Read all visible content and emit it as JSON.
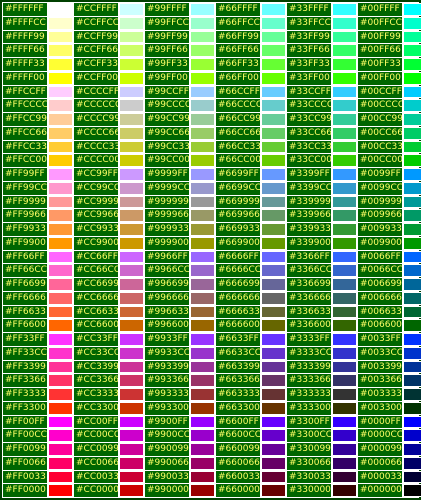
{
  "colors": [
    [
      "#FFFFFF",
      "#CCFFFF",
      "#99FFFF",
      "#66FFFF",
      "#33FFFF",
      "#00FFFF"
    ],
    [
      "#FFFFCC",
      "#CCFFCC",
      "#99FFCC",
      "#66FFCC",
      "#33FFCC",
      "#00FFCC"
    ],
    [
      "#FFFF99",
      "#CCFF99",
      "#99FF99",
      "#66FF99",
      "#33FF99",
      "#00FF99"
    ],
    [
      "#FFFF66",
      "#CCFF66",
      "#99FF66",
      "#66FF66",
      "#33FF66",
      "#00FF66"
    ],
    [
      "#FFFF33",
      "#CCFF33",
      "#99FF33",
      "#66FF33",
      "#33FF33",
      "#00FF33"
    ],
    [
      "#FFFF00",
      "#CCFF00",
      "#99FF00",
      "#66FF00",
      "#33FF00",
      "#00FF00"
    ],
    [
      "#FFCCFF",
      "#CCCCFF",
      "#99CCFF",
      "#66CCFF",
      "#33CCFF",
      "#00CCFF"
    ],
    [
      "#FFCCCC",
      "#CCCCCC",
      "#99CCCC",
      "#66CCCC",
      "#33CCCC",
      "#00CCCC"
    ],
    [
      "#FFCC99",
      "#CCCC99",
      "#99CC99",
      "#66CC99",
      "#33CC99",
      "#00CC99"
    ],
    [
      "#FFCC66",
      "#CCCC66",
      "#99CC66",
      "#66CC66",
      "#33CC66",
      "#00CC66"
    ],
    [
      "#FFCC33",
      "#CCCC33",
      "#99CC33",
      "#66CC33",
      "#33CC33",
      "#00CC33"
    ],
    [
      "#FFCC00",
      "#CCCC00",
      "#99CC00",
      "#66CC00",
      "#33CC00",
      "#00CC00"
    ],
    [
      "#FF99FF",
      "#CC99FF",
      "#9999FF",
      "#6699FF",
      "#3399FF",
      "#0099FF"
    ],
    [
      "#FF99CC",
      "#CC99CC",
      "#9999CC",
      "#6699CC",
      "#3399CC",
      "#0099CC"
    ],
    [
      "#FF9999",
      "#CC9999",
      "#999999",
      "#669999",
      "#339999",
      "#009999"
    ],
    [
      "#FF9966",
      "#CC9966",
      "#999966",
      "#669966",
      "#339966",
      "#009966"
    ],
    [
      "#FF9933",
      "#CC9933",
      "#999933",
      "#669933",
      "#339933",
      "#009933"
    ],
    [
      "#FF9900",
      "#CC9900",
      "#999900",
      "#669900",
      "#339900",
      "#009900"
    ],
    [
      "#FF66FF",
      "#CC66FF",
      "#9966FF",
      "#6666FF",
      "#3366FF",
      "#0066FF"
    ],
    [
      "#FF66CC",
      "#CC66CC",
      "#9966CC",
      "#6666CC",
      "#3366CC",
      "#0066CC"
    ],
    [
      "#FF6699",
      "#CC6699",
      "#996699",
      "#666699",
      "#336699",
      "#006699"
    ],
    [
      "#FF6666",
      "#CC6666",
      "#996666",
      "#666666",
      "#336666",
      "#006666"
    ],
    [
      "#FF6633",
      "#CC6633",
      "#996633",
      "#666633",
      "#336633",
      "#006633"
    ],
    [
      "#FF6600",
      "#CC6600",
      "#996600",
      "#666600",
      "#336600",
      "#006600"
    ],
    [
      "#FF33FF",
      "#CC33FF",
      "#9933FF",
      "#6633FF",
      "#3333FF",
      "#0033FF"
    ],
    [
      "#FF33CC",
      "#CC33CC",
      "#9933CC",
      "#6633CC",
      "#3333CC",
      "#0033CC"
    ],
    [
      "#FF3399",
      "#CC3399",
      "#993399",
      "#663399",
      "#333399",
      "#003399"
    ],
    [
      "#FF3366",
      "#CC3366",
      "#993366",
      "#663366",
      "#333366",
      "#003366"
    ],
    [
      "#FF3333",
      "#CC3333",
      "#993333",
      "#663333",
      "#333333",
      "#003333"
    ],
    [
      "#FF3300",
      "#CC3300",
      "#993300",
      "#663300",
      "#333300",
      "#003300"
    ],
    [
      "#FF00FF",
      "#CC00FF",
      "#9900FF",
      "#6600FF",
      "#3300FF",
      "#0000FF"
    ],
    [
      "#FF00CC",
      "#CC00CC",
      "#9900CC",
      "#6600CC",
      "#3300CC",
      "#0000CC"
    ],
    [
      "#FF0099",
      "#CC0099",
      "#990099",
      "#660099",
      "#330099",
      "#000099"
    ],
    [
      "#FF0066",
      "#CC0066",
      "#990066",
      "#660066",
      "#330066",
      "#000066"
    ],
    [
      "#FF0033",
      "#CC0033",
      "#990033",
      "#660033",
      "#330033",
      "#000033"
    ],
    [
      "#FF0000",
      "#CC0000",
      "#990000",
      "#660000",
      "#330000",
      "#000000"
    ]
  ],
  "style": {
    "label_background": "#006600",
    "label_text_color": "#FFFF66",
    "border_color": "#004000"
  }
}
